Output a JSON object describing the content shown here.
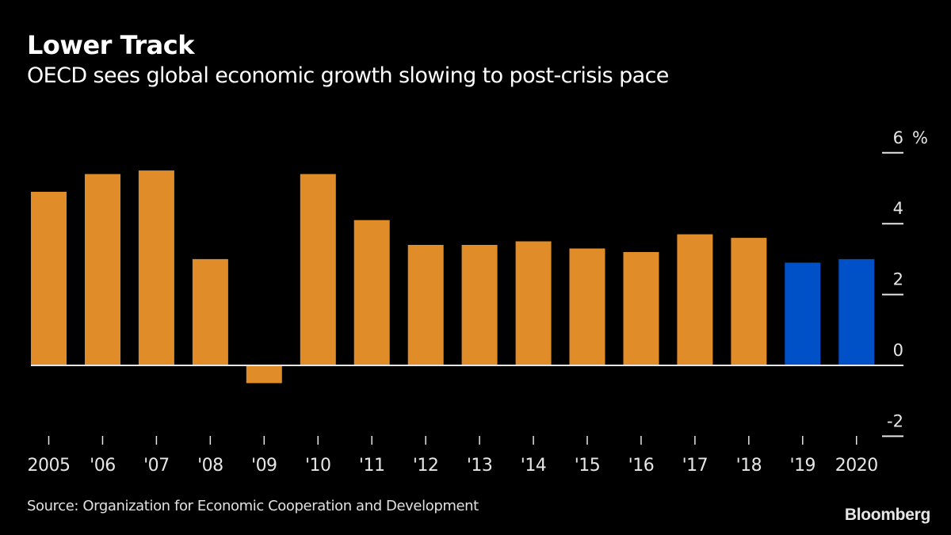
{
  "header": {
    "title": "Lower Track",
    "subtitle": "OECD sees global economic growth slowing to post-crisis pace"
  },
  "footer": {
    "source": "Source: Organization for Economic Cooperation and Development",
    "logo": "Bloomberg"
  },
  "colors": {
    "background": "#000000",
    "actual": "#e08c28",
    "forecast": "#0050c8",
    "axis": "#e6e6e6"
  },
  "chart_data": {
    "type": "bar",
    "title": "Lower Track",
    "subtitle": "OECD sees global economic growth slowing to post-crisis pace",
    "xlabel": "",
    "ylabel": "%",
    "unit_label": "%",
    "ylim": [
      -2,
      6
    ],
    "yticks": [
      6,
      4,
      2,
      0,
      -2
    ],
    "ytick_labels": [
      "6",
      "4",
      "2",
      "0",
      "-2"
    ],
    "y_axis_side": "right",
    "grid": false,
    "categories": [
      "2005",
      "'06",
      "'07",
      "'08",
      "'09",
      "'10",
      "'11",
      "'12",
      "'13",
      "'14",
      "'15",
      "'16",
      "'17",
      "'18",
      "'19",
      "2020"
    ],
    "values": [
      4.9,
      5.4,
      5.5,
      3.0,
      -0.5,
      5.4,
      4.1,
      3.4,
      3.4,
      3.5,
      3.3,
      3.2,
      3.7,
      3.6,
      2.9,
      3.0
    ],
    "highlight": [
      "actual",
      "actual",
      "actual",
      "actual",
      "actual",
      "actual",
      "actual",
      "actual",
      "actual",
      "actual",
      "actual",
      "actual",
      "actual",
      "actual",
      "forecast",
      "forecast"
    ],
    "source": "Source: Organization for Economic Cooperation and Development"
  }
}
